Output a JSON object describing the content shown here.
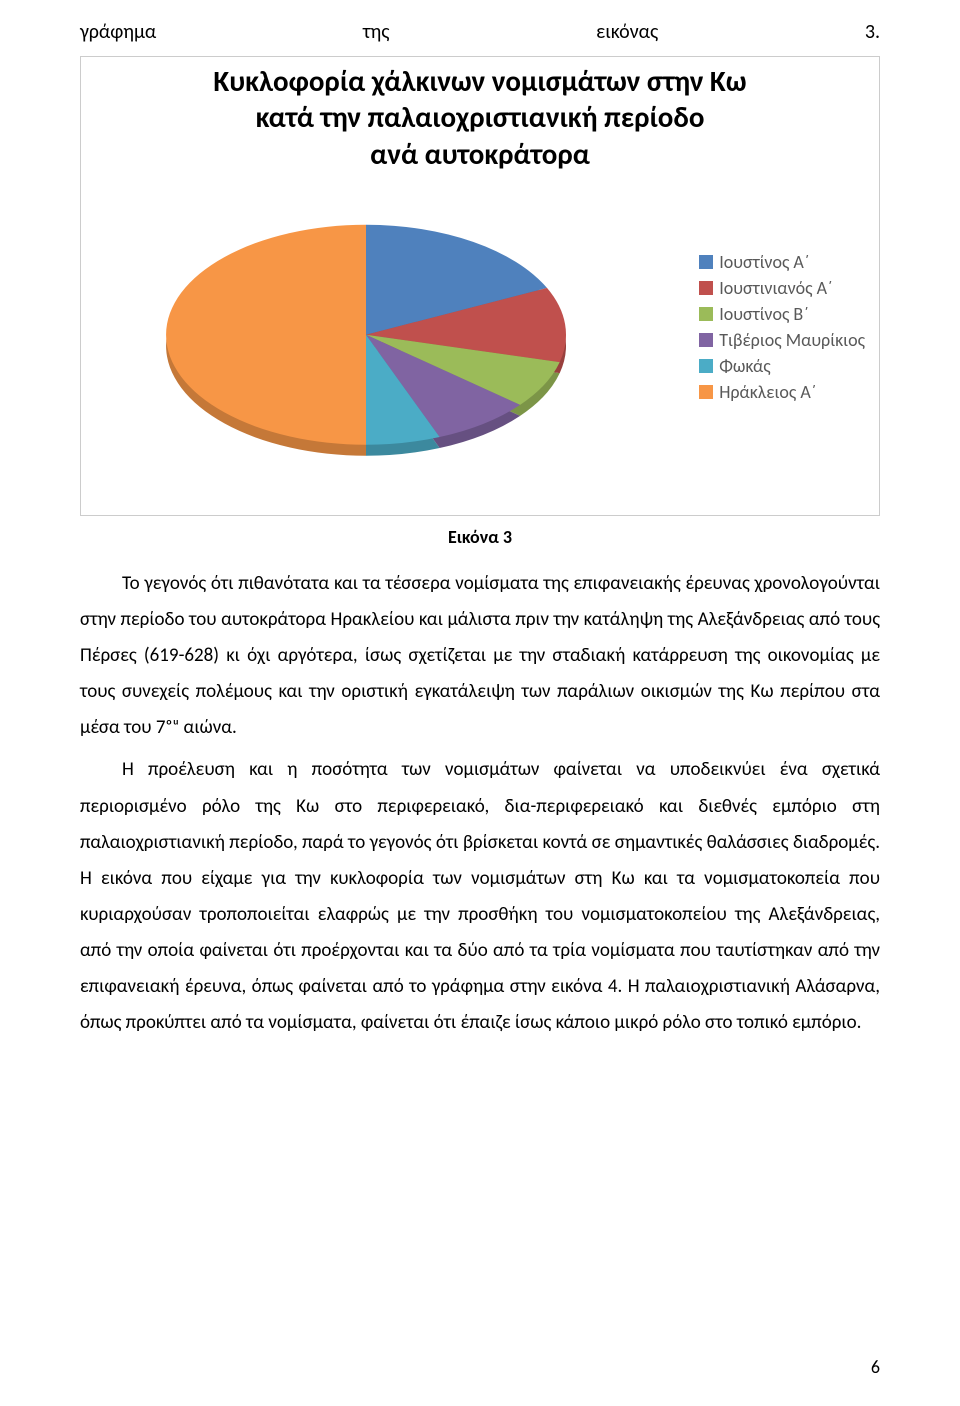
{
  "topline": {
    "w1": "γράφημα",
    "w2": "της",
    "w3": "εικόνας",
    "w4": "3."
  },
  "chart": {
    "type": "pie-3d",
    "title_line1": "Κυκλοφορία χάλκινων νομισμάτων στην Κω",
    "title_line2": "κατά την παλαιοχριστιανική περίοδο",
    "title_line3": "ανά αυτοκράτορα",
    "title_fontsize": 29,
    "title_color": "#000000",
    "background_color": "#ffffff",
    "legend_font_color": "#595959",
    "legend_position": "right",
    "series": [
      {
        "label": "Ιουστίνος Α΄",
        "value": 18,
        "color": "#4f81bd"
      },
      {
        "label": "Ιουστινιανός Α΄",
        "value": 11,
        "color": "#c0504d"
      },
      {
        "label": "Ιουστίνος Β΄",
        "value": 7,
        "color": "#9bbb59"
      },
      {
        "label": "Τιβέριος Μαυρίκιος",
        "value": 8,
        "color": "#8064a2"
      },
      {
        "label": "Φωκάς",
        "value": 6,
        "color": "#4bacc6"
      },
      {
        "label": "Ηράκλειος Α΄",
        "value": 50,
        "color": "#f79646"
      }
    ],
    "side_darken": 0.8
  },
  "caption": "Εικόνα 3",
  "paragraph1": "Το γεγονός ότι πιθανότατα και τα τέσσερα νομίσματα της επιφανειακής έρευνας χρονολογούνται στην περίοδο του αυτοκράτορα Ηρακλείου και μάλιστα πριν την κατάληψη της Αλεξάνδρειας από τους Πέρσες (619-628) κι όχι αργότερα, ίσως σχετίζεται με την σταδιακή κατάρρευση της οικονομίας με τους συνεχείς πολέμους και την οριστική εγκατάλειψη των παράλιων οικισμών της Κω περίπου στα μέσα του 7ᵒᵘ αιώνα.",
  "paragraph2": "Η προέλευση και η ποσότητα των νομισμάτων φαίνεται να υποδεικνύει ένα σχετικά περιορισμένο ρόλο της Κω στο περιφερειακό, δια-περιφερειακό και διεθνές εμπόριο στη παλαιοχριστιανική περίοδο, παρά το γεγονός ότι βρίσκεται κοντά σε σημαντικές θαλάσσιες διαδρομές. Η εικόνα που είχαμε για την κυκλοφορία των νομισμάτων στη Κω και τα νομισματοκοπεία που κυριαρχούσαν τροποποιείται ελαφρώς με την προσθήκη του νομισματοκοπείου της Αλεξάνδρειας, από την οποία φαίνεται ότι προέρχονται και τα δύο από τα τρία νομίσματα που ταυτίστηκαν από την επιφανειακή έρευνα, όπως φαίνεται από το γράφημα στην εικόνα 4. Η παλαιοχριστιανική Αλάσαρνα, όπως προκύπτει από τα νομίσματα, φαίνεται ότι έπαιζε ίσως κάποιο μικρό ρόλο στο τοπικό εμπόριο.",
  "page_number": "6"
}
